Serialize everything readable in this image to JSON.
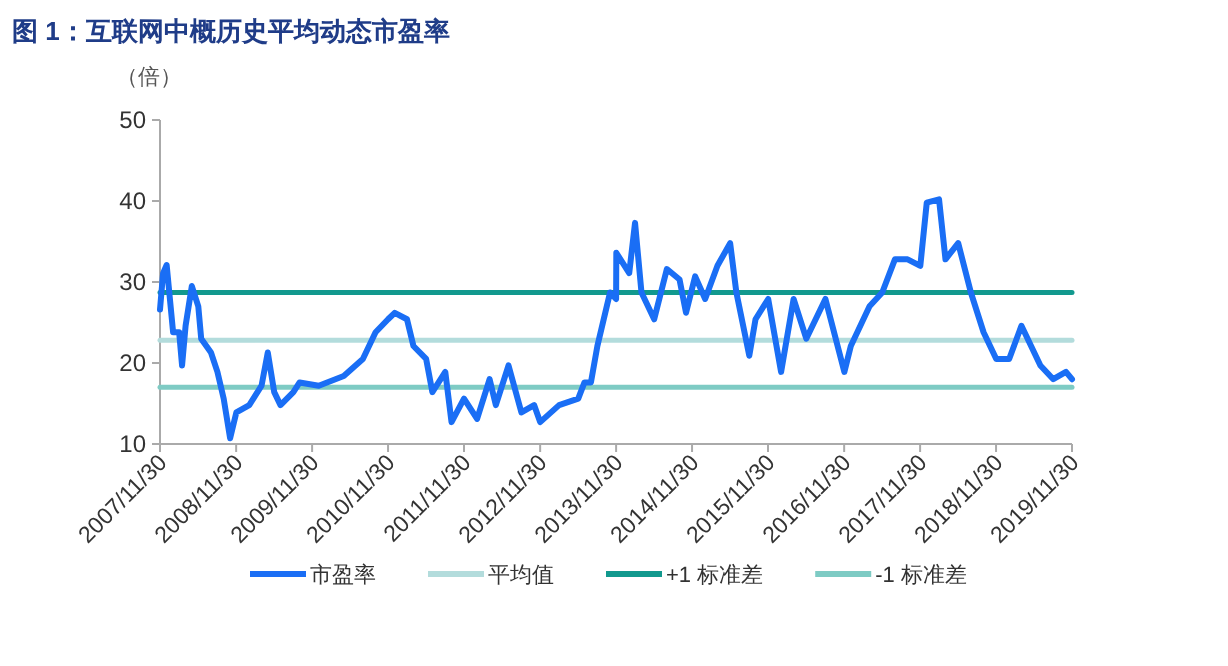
{
  "chart_data": {
    "type": "line",
    "title": "图 1：互联网中概历史平均动态市盈率",
    "ylabel": "（倍）",
    "ylim": [
      10,
      50
    ],
    "yticks": [
      10,
      20,
      30,
      40,
      50
    ],
    "xlim": [
      "2007-11-30",
      "2019-11-30"
    ],
    "xticks": [
      {
        "value": "2007-11-30",
        "label": "2007/11/30"
      },
      {
        "value": "2008-11-30",
        "label": "2008/11/30"
      },
      {
        "value": "2009-11-30",
        "label": "2009/11/30"
      },
      {
        "value": "2010-11-30",
        "label": "2010/11/30"
      },
      {
        "value": "2011-11-30",
        "label": "2011/11/30"
      },
      {
        "value": "2012-11-30",
        "label": "2012/11/30"
      },
      {
        "value": "2013-11-30",
        "label": "2013/11/30"
      },
      {
        "value": "2014-11-30",
        "label": "2014/11/30"
      },
      {
        "value": "2015-11-30",
        "label": "2015/11/30"
      },
      {
        "value": "2016-11-30",
        "label": "2016/11/30"
      },
      {
        "value": "2017-11-30",
        "label": "2017/11/30"
      },
      {
        "value": "2018-11-30",
        "label": "2018/11/30"
      },
      {
        "value": "2019-11-30",
        "label": "2019/11/30"
      }
    ],
    "grid": false,
    "legend": "bottom",
    "series": [
      {
        "name": "市盈率",
        "color": "#1a6ef5",
        "x": [
          "2007-11-30",
          "2007-12-15",
          "2008-01",
          "2008-02",
          "2008-03",
          "2008-03-15",
          "2008-04",
          "2008-05",
          "2008-06",
          "2008-06-15",
          "2008-08",
          "2008-09",
          "2008-10",
          "2008-11",
          "2008-12",
          "2009-02",
          "2009-04",
          "2009-05",
          "2009-06",
          "2009-07",
          "2009-09",
          "2009-10",
          "2010-01",
          "2010-05",
          "2010-08",
          "2010-10",
          "2010-11-30",
          "2011-01",
          "2011-03",
          "2011-04",
          "2011-06",
          "2011-07",
          "2011-09",
          "2011-10",
          "2011-11-30",
          "2012-02",
          "2012-04",
          "2012-05",
          "2012-07",
          "2012-09",
          "2012-11",
          "2012-11-30",
          "2013-03",
          "2013-06",
          "2013-07",
          "2013-08",
          "2013-09",
          "2013-11",
          "2013-11-30",
          "2013-12",
          "2014-02",
          "2014-03",
          "2014-04",
          "2014-06",
          "2014-08",
          "2014-10",
          "2014-11",
          "2014-12-15",
          "2015-02",
          "2015-04",
          "2015-06",
          "2015-07",
          "2015-09",
          "2015-10",
          "2015-12",
          "2016-02",
          "2016-04",
          "2016-06",
          "2016-09",
          "2016-12",
          "2017-01",
          "2017-04",
          "2017-06",
          "2017-08",
          "2017-10",
          "2017-12",
          "2018-01",
          "2018-03",
          "2018-04",
          "2018-06",
          "2018-08",
          "2018-10",
          "2018-12",
          "2019-02",
          "2019-04",
          "2019-07",
          "2019-09",
          "2019-11",
          "2019-11-30"
        ],
        "values": [
          26.6,
          31.1,
          32.1,
          23.8,
          23.8,
          19.7,
          24.6,
          29.5,
          27,
          23,
          21.3,
          18.9,
          15.6,
          10.7,
          13.9,
          14.8,
          17.2,
          21.3,
          16.4,
          14.8,
          16.4,
          17.6,
          17.2,
          18.4,
          20.5,
          23.8,
          25.4,
          26.2,
          25.4,
          22.1,
          20.5,
          16.4,
          18.9,
          12.7,
          15.6,
          13.1,
          18,
          14.8,
          19.7,
          13.9,
          14.8,
          12.7,
          14.8,
          15.6,
          17.6,
          17.6,
          22.1,
          28.7,
          27.9,
          33.6,
          31.1,
          37.3,
          28.7,
          25.4,
          31.6,
          30.3,
          26.2,
          30.7,
          27.9,
          32,
          34.8,
          28.7,
          20.9,
          25.4,
          27.9,
          18.9,
          27.9,
          23,
          27.9,
          18.9,
          22.1,
          27,
          28.7,
          32.8,
          32.8,
          32,
          39.8,
          40.2,
          32.8,
          34.8,
          28.7,
          23.8,
          20.5,
          20.5,
          24.6,
          19.7,
          18,
          18.9,
          18
        ]
      },
      {
        "name": "平均值",
        "color": "#b3dcdc",
        "x": [
          "2007-11-30",
          "2019-11-30"
        ],
        "values": [
          22.8,
          22.8
        ]
      },
      {
        "name": "+1 标准差",
        "color": "#12998e",
        "x": [
          "2007-11-30",
          "2019-11-30"
        ],
        "values": [
          28.7,
          28.7
        ]
      },
      {
        "name": "-1 标准差",
        "color": "#7ecbc4",
        "x": [
          "2007-11-30",
          "2019-11-30"
        ],
        "values": [
          17.0,
          17.0
        ]
      }
    ]
  }
}
